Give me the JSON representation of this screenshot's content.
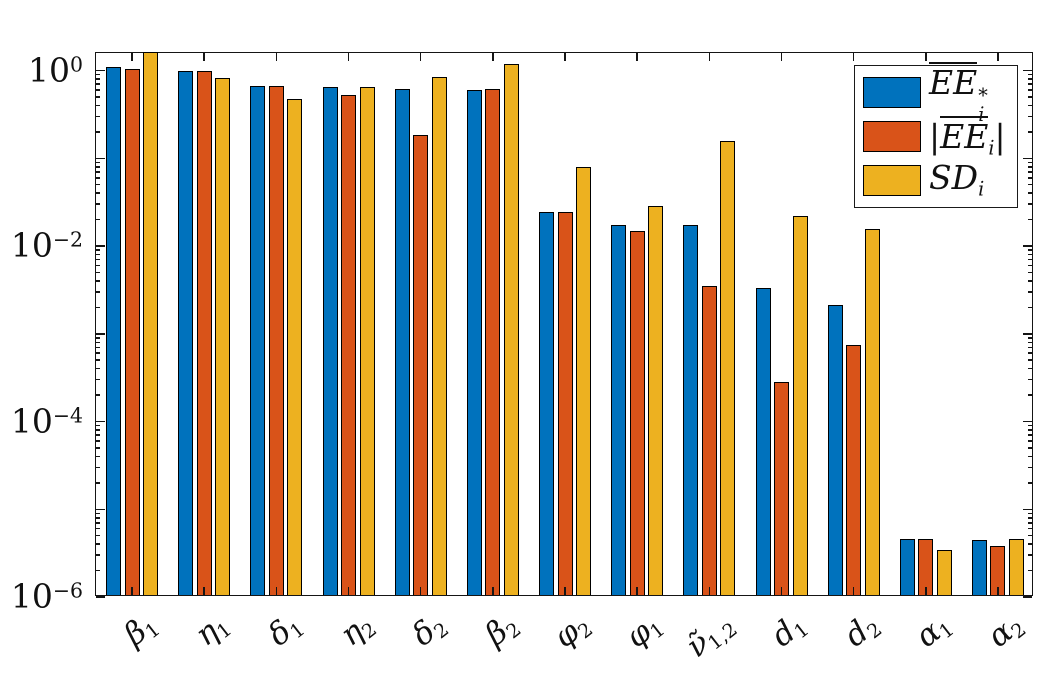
{
  "figure": {
    "background": "#ffffff",
    "axis_color": "#151515"
  },
  "chart_data": {
    "type": "bar",
    "scale": "log",
    "title": "",
    "xlabel": "",
    "ylabel": "",
    "grid": false,
    "legend_position": "northeast",
    "ylim": [
      1e-06,
      1.585
    ],
    "ytick_values": [
      1,
      0.01,
      0.0001,
      1e-06
    ],
    "categories": [
      {
        "base": "β",
        "sub": "1"
      },
      {
        "base": "η",
        "sub": "1"
      },
      {
        "base": "δ",
        "sub": "1"
      },
      {
        "base": "η",
        "sub": "2"
      },
      {
        "base": "δ",
        "sub": "2"
      },
      {
        "base": "β",
        "sub": "2"
      },
      {
        "base": "φ",
        "sub": "2"
      },
      {
        "base": "φ",
        "sub": "1"
      },
      {
        "base": "ν̃",
        "sub": "1,2"
      },
      {
        "base": "d",
        "sub": "1"
      },
      {
        "base": "d",
        "sub": "2"
      },
      {
        "base": "α",
        "sub": "1"
      },
      {
        "base": "α",
        "sub": "2"
      }
    ],
    "series": [
      {
        "name": "EE_i_star",
        "color": "#0072BD",
        "values": [
          1.05,
          0.95,
          0.63,
          0.61,
          0.59,
          0.57,
          0.023,
          0.0165,
          0.0165,
          0.0032,
          0.002,
          4.4e-06,
          4.2e-06
        ]
      },
      {
        "name": "abs_EE_i",
        "color": "#D95319",
        "values": [
          1.0,
          0.93,
          0.63,
          0.5,
          0.175,
          0.59,
          0.0235,
          0.014,
          0.0033,
          0.00027,
          0.0007,
          4.3e-06,
          3.6e-06
        ]
      },
      {
        "name": "SD_i",
        "color": "#EDB120",
        "values": [
          1.55,
          0.78,
          0.45,
          0.62,
          0.8,
          1.14,
          0.076,
          0.027,
          0.148,
          0.021,
          0.0148,
          3.3e-06,
          4.4e-06
        ]
      }
    ],
    "yticks": [
      {
        "base": "10",
        "exp": 0,
        "exp_text": "0"
      },
      {
        "base": "10",
        "exp": -2,
        "exp_text": "−2"
      },
      {
        "base": "10",
        "exp": -4,
        "exp_text": "−4"
      },
      {
        "base": "10",
        "exp": -6,
        "exp_text": "−6"
      }
    ]
  },
  "legend": {
    "entries": [
      {
        "series": "EE_i_star",
        "color": "#0072BD",
        "lbar": "",
        "overline": "EE",
        "plain": "",
        "sup": "*",
        "sub": "i",
        "rbar": ""
      },
      {
        "series": "abs_EE_i",
        "color": "#D95319",
        "lbar": "|",
        "overline": "EE",
        "plain": "",
        "sup": "",
        "sub": "i",
        "rbar": "|"
      },
      {
        "series": "SD_i",
        "color": "#EDB120",
        "lbar": "",
        "overline": "",
        "plain": "SD",
        "sup": "",
        "sub": "i",
        "rbar": ""
      }
    ]
  }
}
